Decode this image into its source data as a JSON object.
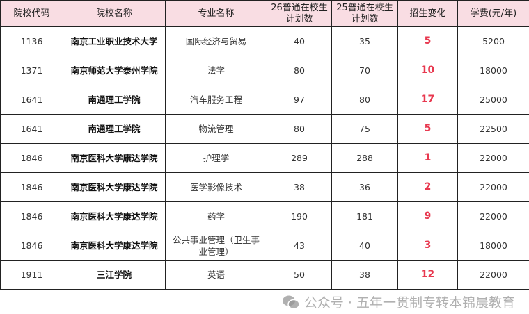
{
  "headers": [
    "院校代码",
    "院校名称",
    "专业名称",
    "26普通在校生计划数",
    "25普通在校生计划数",
    "招生变化",
    "学费(元/年)"
  ],
  "rows": [
    {
      "code": "1136",
      "school": "南京工业职业技术大学",
      "major": "国际经济与贸易",
      "plan26": "40",
      "plan25": "35",
      "change": "5",
      "fee": "5200"
    },
    {
      "code": "1371",
      "school": "南京师范大学泰州学院",
      "major": "法学",
      "plan26": "80",
      "plan25": "70",
      "change": "10",
      "fee": "18000"
    },
    {
      "code": "1641",
      "school": "南通理工学院",
      "major": "汽车服务工程",
      "plan26": "97",
      "plan25": "80",
      "change": "17",
      "fee": "25000"
    },
    {
      "code": "1641",
      "school": "南通理工学院",
      "major": "物流管理",
      "plan26": "80",
      "plan25": "75",
      "change": "5",
      "fee": "22500"
    },
    {
      "code": "1846",
      "school": "南京医科大学康达学院",
      "major": "护理学",
      "plan26": "289",
      "plan25": "288",
      "change": "1",
      "fee": "22000"
    },
    {
      "code": "1846",
      "school": "南京医科大学康达学院",
      "major": "医学影像技术",
      "plan26": "38",
      "plan25": "36",
      "change": "2",
      "fee": "22000"
    },
    {
      "code": "1846",
      "school": "南京医科大学康达学院",
      "major": "药学",
      "plan26": "190",
      "plan25": "181",
      "change": "9",
      "fee": "22000"
    },
    {
      "code": "1846",
      "school": "南京医科大学康达学院",
      "major": "公共事业管理（卫生事业管理）",
      "plan26": "43",
      "plan25": "40",
      "change": "3",
      "fee": "18000"
    },
    {
      "code": "1911",
      "school": "三江学院",
      "major": "英语",
      "plan26": "50",
      "plan25": "38",
      "change": "12",
      "fee": "22000"
    }
  ],
  "watermark": "公众号 · 五年一贯制专转本锦晨教育",
  "colors": {
    "header_bg": "#f9dde3",
    "change_text": "#e8384f"
  }
}
